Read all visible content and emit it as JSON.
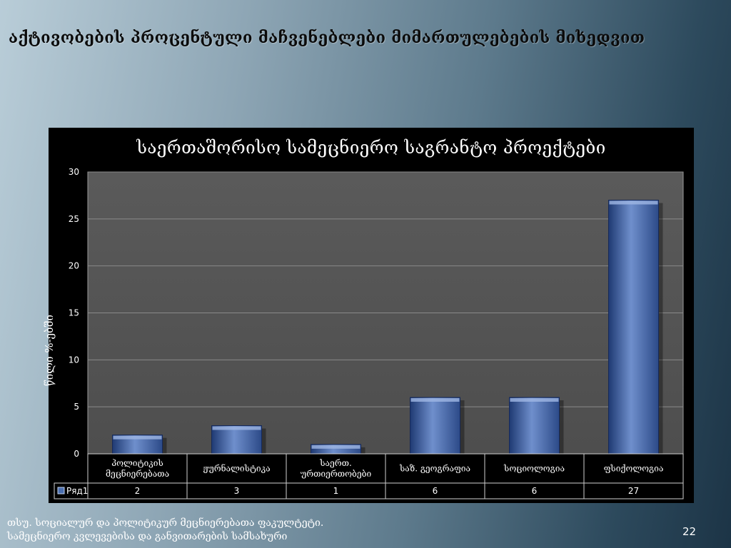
{
  "slide": {
    "title": "აქტივობების პროცენტული მაჩვენებლები მიმართულებების მიხედვით",
    "footer_line1": "თსუ. სოციალურ და პოლიტიკურ მეცნიერებათა ფაკულტეტი.",
    "footer_line2": "სამეცნიერო კვლევებისა და განვითარების სამსახური",
    "page_number": "22"
  },
  "chart_data": {
    "type": "bar",
    "title": "საერთაშორისო სამეცნიერო საგრანტო პროექტები",
    "ylabel": "წილი %-ებში",
    "xlabel": "",
    "ylim": [
      0,
      30
    ],
    "yticks": [
      "0",
      "5",
      "10",
      "15",
      "20",
      "25",
      "30"
    ],
    "grid": true,
    "categories": [
      [
        "პოლიტიკის",
        "მეცნიერებათა"
      ],
      [
        "ჟურნალისტიკა"
      ],
      [
        "საერთ.",
        "ურთიერთობები"
      ],
      [
        "საზ. გეოგრაფია"
      ],
      [
        "სოციოლოგია"
      ],
      [
        "ფსიქოლოგია"
      ]
    ],
    "series": [
      {
        "name": "Ряд1",
        "values": [
          2,
          3,
          1,
          6,
          6,
          27
        ],
        "value_labels": [
          "2",
          "3",
          "1",
          "6",
          "6",
          "27"
        ]
      }
    ],
    "colors": {
      "bar": "#4a6fb0",
      "bar_light": "#8fa9d9",
      "bar_dark": "#1f3a73",
      "plot_bg": "#545454",
      "grid": "#8a8a8a"
    }
  }
}
